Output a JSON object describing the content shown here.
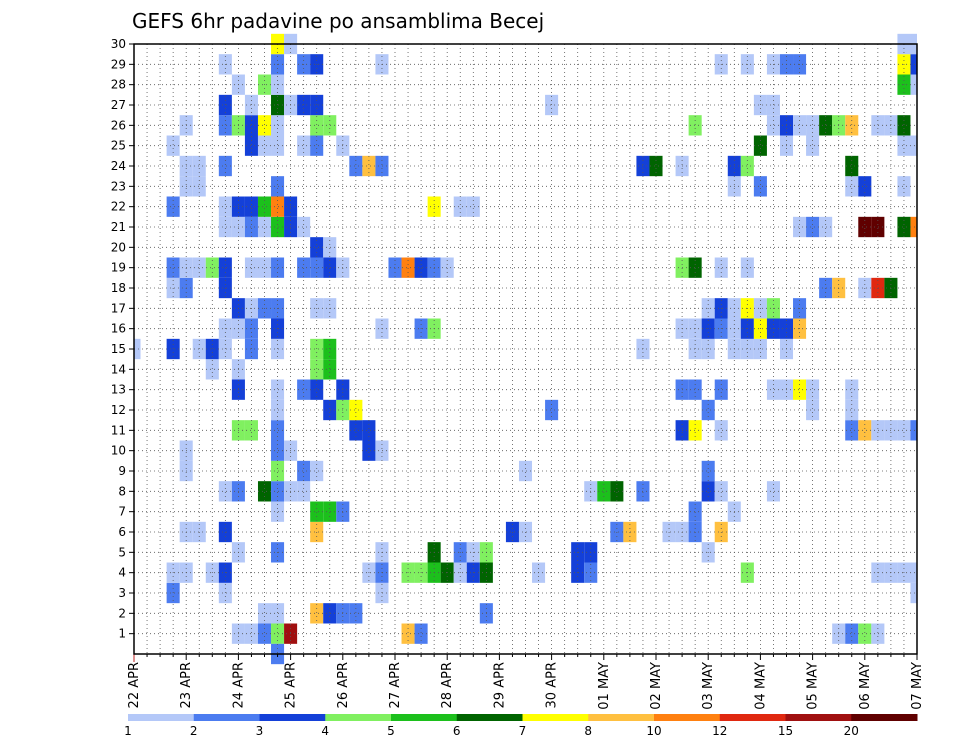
{
  "chart_data": {
    "type": "heatmap",
    "title": "GEFS 6hr padavine po ansamblima Becej",
    "x_ticks": [
      "22 APR",
      "23 APR",
      "24 APR",
      "25 APR",
      "26 APR",
      "27 APR",
      "28 APR",
      "29 APR",
      "30 APR",
      "01 MAY",
      "02 MAY",
      "03 MAY",
      "04 MAY",
      "05 MAY",
      "06 MAY",
      "07 MAY"
    ],
    "y_ticks": [
      1,
      2,
      3,
      4,
      5,
      6,
      7,
      8,
      9,
      10,
      11,
      12,
      13,
      14,
      15,
      16,
      17,
      18,
      19,
      20,
      21,
      22,
      23,
      24,
      25,
      26,
      27,
      28,
      29,
      30
    ],
    "xlim": [
      "22 APR 00Z",
      "07 MAY 18Z"
    ],
    "ylim": [
      0,
      30
    ],
    "grid": true,
    "cell_step": "6hr",
    "colorbar": {
      "labels": [
        "1",
        "2",
        "3",
        "4",
        "5",
        "6",
        "7",
        "8",
        "10",
        "12",
        "15",
        "20"
      ],
      "colors": [
        "#b4c8f8",
        "#4c7cf0",
        "#1440d8",
        "#80f060",
        "#1cc01c",
        "#006400",
        "#ffff00",
        "#ffc040",
        "#ff8010",
        "#e02810",
        "#a01010",
        "#600000"
      ]
    },
    "cells": [
      [
        1,
        8,
        "#b4c8f8"
      ],
      [
        1,
        9,
        "#b4c8f8"
      ],
      [
        1,
        10,
        "#4c7cf0"
      ],
      [
        1,
        11,
        "#80f060"
      ],
      [
        1,
        12,
        "#a01010"
      ],
      [
        1,
        21,
        "#ffc040"
      ],
      [
        1,
        22,
        "#4c7cf0"
      ],
      [
        1,
        54,
        "#b4c8f8"
      ],
      [
        1,
        55,
        "#4c7cf0"
      ],
      [
        1,
        56,
        "#80f060"
      ],
      [
        1,
        57,
        "#b4c8f8"
      ],
      [
        2,
        10,
        "#b4c8f8"
      ],
      [
        2,
        11,
        "#b4c8f8"
      ],
      [
        2,
        14,
        "#ffc040"
      ],
      [
        2,
        15,
        "#1440d8"
      ],
      [
        2,
        16,
        "#4c7cf0"
      ],
      [
        2,
        17,
        "#4c7cf0"
      ],
      [
        2,
        27,
        "#4c7cf0"
      ],
      [
        3,
        3,
        "#4c7cf0"
      ],
      [
        3,
        7,
        "#b4c8f8"
      ],
      [
        3,
        19,
        "#b4c8f8"
      ],
      [
        3,
        60,
        "#b4c8f8"
      ],
      [
        4,
        3,
        "#b4c8f8"
      ],
      [
        4,
        4,
        "#b4c8f8"
      ],
      [
        4,
        6,
        "#b4c8f8"
      ],
      [
        4,
        7,
        "#1440d8"
      ],
      [
        4,
        18,
        "#b4c8f8"
      ],
      [
        4,
        19,
        "#4c7cf0"
      ],
      [
        4,
        21,
        "#80f060"
      ],
      [
        4,
        22,
        "#80f060"
      ],
      [
        4,
        23,
        "#1cc01c"
      ],
      [
        4,
        24,
        "#006400"
      ],
      [
        4,
        25,
        "#b4c8f8"
      ],
      [
        4,
        26,
        "#1440d8"
      ],
      [
        4,
        27,
        "#006400"
      ],
      [
        4,
        31,
        "#b4c8f8"
      ],
      [
        4,
        34,
        "#1440d8"
      ],
      [
        4,
        35,
        "#4c7cf0"
      ],
      [
        4,
        47,
        "#80f060"
      ],
      [
        4,
        57,
        "#b4c8f8"
      ],
      [
        4,
        58,
        "#b4c8f8"
      ],
      [
        4,
        59,
        "#b4c8f8"
      ],
      [
        4,
        60,
        "#b4c8f8"
      ],
      [
        5,
        8,
        "#b4c8f8"
      ],
      [
        5,
        11,
        "#4c7cf0"
      ],
      [
        5,
        19,
        "#b4c8f8"
      ],
      [
        5,
        23,
        "#006400"
      ],
      [
        5,
        25,
        "#4c7cf0"
      ],
      [
        5,
        26,
        "#b4c8f8"
      ],
      [
        5,
        27,
        "#80f060"
      ],
      [
        5,
        34,
        "#1440d8"
      ],
      [
        5,
        35,
        "#1440d8"
      ],
      [
        5,
        44,
        "#b4c8f8"
      ],
      [
        6,
        4,
        "#b4c8f8"
      ],
      [
        6,
        5,
        "#b4c8f8"
      ],
      [
        6,
        7,
        "#1440d8"
      ],
      [
        6,
        14,
        "#ffc040"
      ],
      [
        6,
        29,
        "#1440d8"
      ],
      [
        6,
        30,
        "#b4c8f8"
      ],
      [
        6,
        37,
        "#4c7cf0"
      ],
      [
        6,
        38,
        "#ffc040"
      ],
      [
        6,
        41,
        "#b4c8f8"
      ],
      [
        6,
        42,
        "#b4c8f8"
      ],
      [
        6,
        43,
        "#4c7cf0"
      ],
      [
        6,
        45,
        "#ffc040"
      ],
      [
        7,
        11,
        "#b4c8f8"
      ],
      [
        7,
        14,
        "#1cc01c"
      ],
      [
        7,
        15,
        "#1cc01c"
      ],
      [
        7,
        16,
        "#4c7cf0"
      ],
      [
        7,
        43,
        "#4c7cf0"
      ],
      [
        7,
        46,
        "#b4c8f8"
      ],
      [
        8,
        7,
        "#b4c8f8"
      ],
      [
        8,
        8,
        "#4c7cf0"
      ],
      [
        8,
        10,
        "#006400"
      ],
      [
        8,
        11,
        "#4c7cf0"
      ],
      [
        8,
        12,
        "#b4c8f8"
      ],
      [
        8,
        13,
        "#b4c8f8"
      ],
      [
        8,
        35,
        "#b4c8f8"
      ],
      [
        8,
        36,
        "#1cc01c"
      ],
      [
        8,
        37,
        "#006400"
      ],
      [
        8,
        39,
        "#4c7cf0"
      ],
      [
        8,
        44,
        "#1440d8"
      ],
      [
        8,
        45,
        "#b4c8f8"
      ],
      [
        8,
        49,
        "#b4c8f8"
      ],
      [
        9,
        4,
        "#b4c8f8"
      ],
      [
        9,
        11,
        "#80f060"
      ],
      [
        9,
        13,
        "#4c7cf0"
      ],
      [
        9,
        14,
        "#b4c8f8"
      ],
      [
        9,
        30,
        "#b4c8f8"
      ],
      [
        9,
        44,
        "#4c7cf0"
      ],
      [
        10,
        4,
        "#b4c8f8"
      ],
      [
        10,
        11,
        "#4c7cf0"
      ],
      [
        10,
        12,
        "#b4c8f8"
      ],
      [
        10,
        18,
        "#1440d8"
      ],
      [
        10,
        19,
        "#b4c8f8"
      ],
      [
        11,
        8,
        "#80f060"
      ],
      [
        11,
        9,
        "#80f060"
      ],
      [
        11,
        11,
        "#4c7cf0"
      ],
      [
        11,
        17,
        "#1440d8"
      ],
      [
        11,
        18,
        "#1440d8"
      ],
      [
        11,
        42,
        "#1440d8"
      ],
      [
        11,
        43,
        "#ffff00"
      ],
      [
        11,
        45,
        "#b4c8f8"
      ],
      [
        11,
        55,
        "#4c7cf0"
      ],
      [
        11,
        56,
        "#ffc040"
      ],
      [
        11,
        57,
        "#b4c8f8"
      ],
      [
        11,
        58,
        "#b4c8f8"
      ],
      [
        11,
        59,
        "#b4c8f8"
      ],
      [
        11,
        60,
        "#4c7cf0"
      ],
      [
        12,
        11,
        "#b4c8f8"
      ],
      [
        12,
        15,
        "#1440d8"
      ],
      [
        12,
        16,
        "#80f060"
      ],
      [
        12,
        17,
        "#ffff00"
      ],
      [
        12,
        32,
        "#4c7cf0"
      ],
      [
        12,
        44,
        "#4c7cf0"
      ],
      [
        12,
        52,
        "#b4c8f8"
      ],
      [
        12,
        55,
        "#b4c8f8"
      ],
      [
        13,
        8,
        "#1440d8"
      ],
      [
        13,
        11,
        "#b4c8f8"
      ],
      [
        13,
        13,
        "#4c7cf0"
      ],
      [
        13,
        14,
        "#1440d8"
      ],
      [
        13,
        16,
        "#1440d8"
      ],
      [
        13,
        42,
        "#4c7cf0"
      ],
      [
        13,
        43,
        "#4c7cf0"
      ],
      [
        13,
        45,
        "#4c7cf0"
      ],
      [
        13,
        49,
        "#b4c8f8"
      ],
      [
        13,
        50,
        "#b4c8f8"
      ],
      [
        13,
        51,
        "#ffff00"
      ],
      [
        13,
        52,
        "#b4c8f8"
      ],
      [
        13,
        55,
        "#b4c8f8"
      ],
      [
        14,
        6,
        "#b4c8f8"
      ],
      [
        14,
        8,
        "#b4c8f8"
      ],
      [
        14,
        14,
        "#80f060"
      ],
      [
        14,
        15,
        "#1cc01c"
      ],
      [
        15,
        0,
        "#b4c8f8"
      ],
      [
        15,
        3,
        "#1440d8"
      ],
      [
        15,
        5,
        "#b4c8f8"
      ],
      [
        15,
        6,
        "#1440d8"
      ],
      [
        15,
        7,
        "#b4c8f8"
      ],
      [
        15,
        9,
        "#4c7cf0"
      ],
      [
        15,
        11,
        "#b4c8f8"
      ],
      [
        15,
        14,
        "#80f060"
      ],
      [
        15,
        15,
        "#1cc01c"
      ],
      [
        15,
        39,
        "#b4c8f8"
      ],
      [
        15,
        43,
        "#b4c8f8"
      ],
      [
        15,
        44,
        "#b4c8f8"
      ],
      [
        15,
        46,
        "#b4c8f8"
      ],
      [
        15,
        47,
        "#b4c8f8"
      ],
      [
        15,
        48,
        "#b4c8f8"
      ],
      [
        15,
        50,
        "#b4c8f8"
      ],
      [
        16,
        7,
        "#b4c8f8"
      ],
      [
        16,
        8,
        "#b4c8f8"
      ],
      [
        16,
        9,
        "#4c7cf0"
      ],
      [
        16,
        11,
        "#1440d8"
      ],
      [
        16,
        19,
        "#b4c8f8"
      ],
      [
        16,
        22,
        "#4c7cf0"
      ],
      [
        16,
        23,
        "#80f060"
      ],
      [
        16,
        42,
        "#b4c8f8"
      ],
      [
        16,
        43,
        "#b4c8f8"
      ],
      [
        16,
        44,
        "#1440d8"
      ],
      [
        16,
        45,
        "#4c7cf0"
      ],
      [
        16,
        46,
        "#b4c8f8"
      ],
      [
        16,
        47,
        "#1440d8"
      ],
      [
        16,
        48,
        "#ffff00"
      ],
      [
        16,
        49,
        "#1440d8"
      ],
      [
        16,
        50,
        "#1440d8"
      ],
      [
        16,
        51,
        "#ffc040"
      ],
      [
        17,
        8,
        "#1440d8"
      ],
      [
        17,
        9,
        "#b4c8f8"
      ],
      [
        17,
        10,
        "#4c7cf0"
      ],
      [
        17,
        11,
        "#4c7cf0"
      ],
      [
        17,
        14,
        "#b4c8f8"
      ],
      [
        17,
        15,
        "#b4c8f8"
      ],
      [
        17,
        44,
        "#b4c8f8"
      ],
      [
        17,
        45,
        "#1440d8"
      ],
      [
        17,
        46,
        "#b4c8f8"
      ],
      [
        17,
        47,
        "#ffff00"
      ],
      [
        17,
        48,
        "#b4c8f8"
      ],
      [
        17,
        49,
        "#80f060"
      ],
      [
        17,
        51,
        "#4c7cf0"
      ],
      [
        18,
        3,
        "#b4c8f8"
      ],
      [
        18,
        4,
        "#4c7cf0"
      ],
      [
        18,
        7,
        "#1440d8"
      ],
      [
        18,
        53,
        "#4c7cf0"
      ],
      [
        18,
        54,
        "#ffc040"
      ],
      [
        18,
        56,
        "#b4c8f8"
      ],
      [
        18,
        57,
        "#e02810"
      ],
      [
        18,
        58,
        "#006400"
      ],
      [
        19,
        3,
        "#4c7cf0"
      ],
      [
        19,
        4,
        "#b4c8f8"
      ],
      [
        19,
        5,
        "#b4c8f8"
      ],
      [
        19,
        6,
        "#80f060"
      ],
      [
        19,
        7,
        "#1440d8"
      ],
      [
        19,
        9,
        "#b4c8f8"
      ],
      [
        19,
        10,
        "#b4c8f8"
      ],
      [
        19,
        11,
        "#4c7cf0"
      ],
      [
        19,
        13,
        "#4c7cf0"
      ],
      [
        19,
        14,
        "#4c7cf0"
      ],
      [
        19,
        15,
        "#1440d8"
      ],
      [
        19,
        16,
        "#b4c8f8"
      ],
      [
        19,
        20,
        "#4c7cf0"
      ],
      [
        19,
        21,
        "#ff8010"
      ],
      [
        19,
        22,
        "#1440d8"
      ],
      [
        19,
        23,
        "#4c7cf0"
      ],
      [
        19,
        24,
        "#b4c8f8"
      ],
      [
        19,
        42,
        "#80f060"
      ],
      [
        19,
        43,
        "#006400"
      ],
      [
        19,
        45,
        "#b4c8f8"
      ],
      [
        19,
        47,
        "#b4c8f8"
      ],
      [
        20,
        14,
        "#1440d8"
      ],
      [
        20,
        15,
        "#b4c8f8"
      ],
      [
        21,
        7,
        "#b4c8f8"
      ],
      [
        21,
        8,
        "#b4c8f8"
      ],
      [
        21,
        9,
        "#4c7cf0"
      ],
      [
        21,
        10,
        "#b4c8f8"
      ],
      [
        21,
        11,
        "#1cc01c"
      ],
      [
        21,
        12,
        "#1440d8"
      ],
      [
        21,
        13,
        "#b4c8f8"
      ],
      [
        21,
        51,
        "#b4c8f8"
      ],
      [
        21,
        52,
        "#4c7cf0"
      ],
      [
        21,
        53,
        "#b4c8f8"
      ],
      [
        21,
        56,
        "#600000"
      ],
      [
        21,
        57,
        "#600000"
      ],
      [
        21,
        59,
        "#006400"
      ],
      [
        21,
        60,
        "#ff8010"
      ],
      [
        22,
        3,
        "#4c7cf0"
      ],
      [
        22,
        7,
        "#b4c8f8"
      ],
      [
        22,
        8,
        "#1440d8"
      ],
      [
        22,
        9,
        "#1440d8"
      ],
      [
        22,
        10,
        "#1cc01c"
      ],
      [
        22,
        11,
        "#ff8010"
      ],
      [
        22,
        12,
        "#1440d8"
      ],
      [
        22,
        23,
        "#ffff00"
      ],
      [
        22,
        25,
        "#b4c8f8"
      ],
      [
        22,
        26,
        "#b4c8f8"
      ],
      [
        23,
        4,
        "#b4c8f8"
      ],
      [
        23,
        5,
        "#b4c8f8"
      ],
      [
        23,
        11,
        "#4c7cf0"
      ],
      [
        23,
        46,
        "#b4c8f8"
      ],
      [
        23,
        48,
        "#4c7cf0"
      ],
      [
        23,
        55,
        "#b4c8f8"
      ],
      [
        23,
        56,
        "#1440d8"
      ],
      [
        23,
        59,
        "#b4c8f8"
      ],
      [
        24,
        4,
        "#b4c8f8"
      ],
      [
        24,
        5,
        "#b4c8f8"
      ],
      [
        24,
        7,
        "#4c7cf0"
      ],
      [
        24,
        17,
        "#4c7cf0"
      ],
      [
        24,
        18,
        "#ffc040"
      ],
      [
        24,
        19,
        "#4c7cf0"
      ],
      [
        24,
        39,
        "#1440d8"
      ],
      [
        24,
        40,
        "#006400"
      ],
      [
        24,
        42,
        "#b4c8f8"
      ],
      [
        24,
        46,
        "#1440d8"
      ],
      [
        24,
        47,
        "#80f060"
      ],
      [
        24,
        55,
        "#006400"
      ],
      [
        25,
        3,
        "#b4c8f8"
      ],
      [
        25,
        9,
        "#1440d8"
      ],
      [
        25,
        10,
        "#b4c8f8"
      ],
      [
        25,
        11,
        "#b4c8f8"
      ],
      [
        25,
        13,
        "#b4c8f8"
      ],
      [
        25,
        14,
        "#4c7cf0"
      ],
      [
        25,
        16,
        "#b4c8f8"
      ],
      [
        25,
        48,
        "#006400"
      ],
      [
        25,
        50,
        "#b4c8f8"
      ],
      [
        25,
        52,
        "#b4c8f8"
      ],
      [
        25,
        59,
        "#b4c8f8"
      ],
      [
        25,
        60,
        "#b4c8f8"
      ],
      [
        26,
        4,
        "#b4c8f8"
      ],
      [
        26,
        7,
        "#4c7cf0"
      ],
      [
        26,
        8,
        "#80f060"
      ],
      [
        26,
        9,
        "#1440d8"
      ],
      [
        26,
        10,
        "#ffff00"
      ],
      [
        26,
        11,
        "#b4c8f8"
      ],
      [
        26,
        14,
        "#80f060"
      ],
      [
        26,
        15,
        "#80f060"
      ],
      [
        26,
        43,
        "#80f060"
      ],
      [
        26,
        49,
        "#b4c8f8"
      ],
      [
        26,
        50,
        "#1440d8"
      ],
      [
        26,
        51,
        "#b4c8f8"
      ],
      [
        26,
        52,
        "#b4c8f8"
      ],
      [
        26,
        53,
        "#006400"
      ],
      [
        26,
        54,
        "#80f060"
      ],
      [
        26,
        55,
        "#ffc040"
      ],
      [
        26,
        57,
        "#b4c8f8"
      ],
      [
        26,
        58,
        "#b4c8f8"
      ],
      [
        26,
        59,
        "#006400"
      ],
      [
        27,
        7,
        "#1440d8"
      ],
      [
        27,
        9,
        "#b4c8f8"
      ],
      [
        27,
        11,
        "#006400"
      ],
      [
        27,
        12,
        "#b4c8f8"
      ],
      [
        27,
        13,
        "#1440d8"
      ],
      [
        27,
        14,
        "#1440d8"
      ],
      [
        27,
        32,
        "#b4c8f8"
      ],
      [
        27,
        48,
        "#b4c8f8"
      ],
      [
        27,
        49,
        "#b4c8f8"
      ],
      [
        28,
        8,
        "#b4c8f8"
      ],
      [
        28,
        10,
        "#80f060"
      ],
      [
        28,
        11,
        "#b4c8f8"
      ],
      [
        28,
        59,
        "#1cc01c"
      ],
      [
        28,
        60,
        "#b4c8f8"
      ],
      [
        29,
        7,
        "#b4c8f8"
      ],
      [
        29,
        11,
        "#4c7cf0"
      ],
      [
        29,
        13,
        "#4c7cf0"
      ],
      [
        29,
        14,
        "#1440d8"
      ],
      [
        29,
        19,
        "#b4c8f8"
      ],
      [
        29,
        45,
        "#b4c8f8"
      ],
      [
        29,
        47,
        "#b4c8f8"
      ],
      [
        29,
        49,
        "#b4c8f8"
      ],
      [
        29,
        50,
        "#4c7cf0"
      ],
      [
        29,
        51,
        "#4c7cf0"
      ],
      [
        29,
        59,
        "#ffff00"
      ],
      [
        29,
        60,
        "#1440d8"
      ],
      [
        30,
        11,
        "#ffff00"
      ],
      [
        30,
        12,
        "#b4c8f8"
      ],
      [
        30,
        59,
        "#b4c8f8"
      ],
      [
        30,
        60,
        "#b4c8f8"
      ],
      [
        0,
        11,
        "#4c7cf0"
      ]
    ]
  }
}
